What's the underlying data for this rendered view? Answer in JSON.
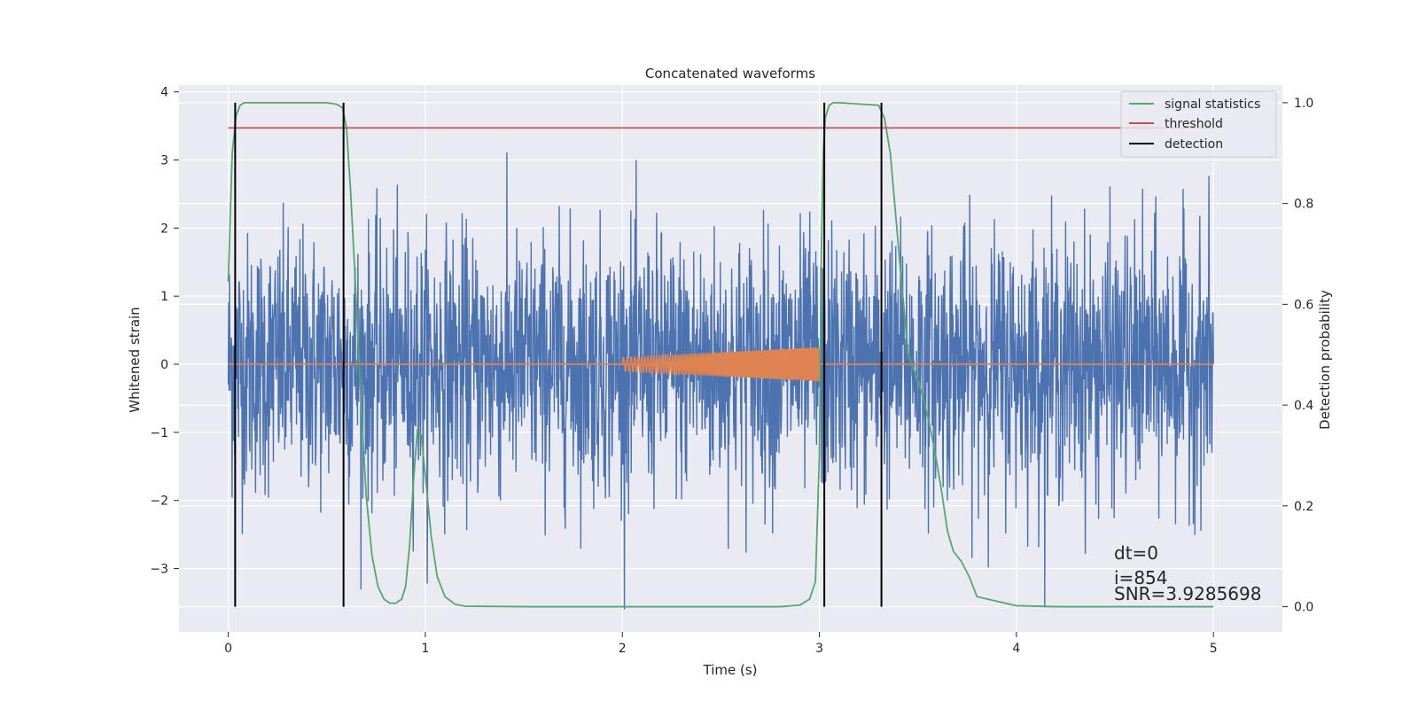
{
  "chart_data": {
    "type": "line",
    "title": "Concatenated waveforms",
    "xlabel": "Time (s)",
    "ylabel": "Whitened strain",
    "y2label": "Detection probability",
    "xlim": [
      -0.25,
      5.35
    ],
    "ylim": [
      -3.93,
      4.1
    ],
    "y2lim": [
      -0.05,
      1.035
    ],
    "x_ticks": [
      0,
      1,
      2,
      3,
      4,
      5
    ],
    "x_tick_labels": [
      "0",
      "1",
      "2",
      "3",
      "4",
      "5"
    ],
    "y_ticks": [
      -3,
      -2,
      -1,
      0,
      1,
      2,
      3,
      4
    ],
    "y_tick_labels": [
      "−3",
      "−2",
      "−1",
      "0",
      "1",
      "2",
      "3",
      "4"
    ],
    "y2_ticks": [
      0.0,
      0.2,
      0.4,
      0.6,
      0.8,
      1.0
    ],
    "y2_tick_labels": [
      "0.0",
      "0.2",
      "0.4",
      "0.6",
      "0.8",
      "1.0"
    ],
    "grid": true,
    "legend_position": "top-right",
    "colors": {
      "background": "#eaeaf2",
      "grid": "#ffffff",
      "strain": "#4c72b0",
      "waveform": "#dd8452",
      "signal_statistics": "#55a868",
      "threshold": "#c44e52",
      "detection": "#000000"
    },
    "series": [
      {
        "name": "signal statistics",
        "axis": "right",
        "x": [
          0.0,
          0.02,
          0.04,
          0.06,
          0.08,
          0.1,
          0.15,
          0.3,
          0.5,
          0.55,
          0.58,
          0.6,
          0.62,
          0.64,
          0.66,
          0.68,
          0.7,
          0.73,
          0.76,
          0.79,
          0.82,
          0.85,
          0.88,
          0.9,
          0.92,
          0.94,
          0.96,
          0.98,
          1.0,
          1.03,
          1.06,
          1.1,
          1.15,
          1.2,
          1.5,
          2.0,
          2.5,
          2.8,
          2.9,
          2.95,
          2.98,
          3.0,
          3.01,
          3.02,
          3.03,
          3.05,
          3.07,
          3.1,
          3.3,
          3.33,
          3.36,
          3.4,
          3.45,
          3.5,
          3.53,
          3.56,
          3.59,
          3.62,
          3.65,
          3.68,
          3.72,
          3.76,
          3.8,
          4.0,
          4.2,
          4.5,
          5.0
        ],
        "values": [
          0.645,
          0.9,
          0.975,
          0.995,
          1.0,
          1.0,
          1.0,
          1.0,
          1.0,
          0.997,
          0.99,
          0.95,
          0.83,
          0.68,
          0.52,
          0.36,
          0.22,
          0.1,
          0.04,
          0.015,
          0.007,
          0.007,
          0.015,
          0.04,
          0.12,
          0.25,
          0.35,
          0.34,
          0.26,
          0.14,
          0.06,
          0.02,
          0.005,
          0.001,
          0.0,
          0.0,
          0.0,
          0.0,
          0.003,
          0.015,
          0.05,
          0.3,
          0.7,
          0.9,
          0.97,
          0.995,
          1.0,
          1.0,
          0.995,
          0.97,
          0.9,
          0.72,
          0.5,
          0.45,
          0.41,
          0.36,
          0.3,
          0.23,
          0.15,
          0.11,
          0.09,
          0.06,
          0.02,
          0.002,
          0.0,
          0.0,
          0.0
        ]
      },
      {
        "name": "threshold",
        "axis": "right",
        "x": [
          0.0,
          5.0
        ],
        "values": [
          0.95,
          0.95
        ]
      },
      {
        "name": "detection",
        "axis": "right",
        "x_positions": [
          0.035,
          0.585,
          3.025,
          3.315
        ],
        "range": [
          0.0,
          1.0
        ]
      },
      {
        "name": "",
        "axis": "left",
        "kind": "noise",
        "x_range": [
          0.0,
          5.0
        ],
        "typical_range": [
          -1.5,
          1.5
        ],
        "extremes": [
          -3.6,
          3.4
        ]
      },
      {
        "name": "",
        "axis": "left",
        "kind": "chirp",
        "x_range": [
          2.0,
          3.0
        ],
        "amplitude_range": [
          0.1,
          0.25
        ],
        "baseline": 0
      }
    ],
    "annotations": [
      "dt=0",
      "i=854",
      "SNR=3.9285698"
    ]
  }
}
